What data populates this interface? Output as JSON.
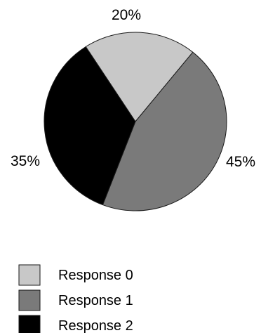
{
  "chart_data": {
    "type": "pie",
    "title": "",
    "slices": [
      {
        "name": "Response 0",
        "value": 20,
        "label": "20%",
        "color": "#c8c8c8"
      },
      {
        "name": "Response 1",
        "value": 45,
        "label": "45%",
        "color": "#7a7a7a"
      },
      {
        "name": "Response 2",
        "value": 35,
        "label": "35%",
        "color": "#000000"
      }
    ],
    "legend": {
      "position": "bottom-left",
      "items": [
        "Response 0",
        "Response 1",
        "Response 2"
      ]
    }
  }
}
